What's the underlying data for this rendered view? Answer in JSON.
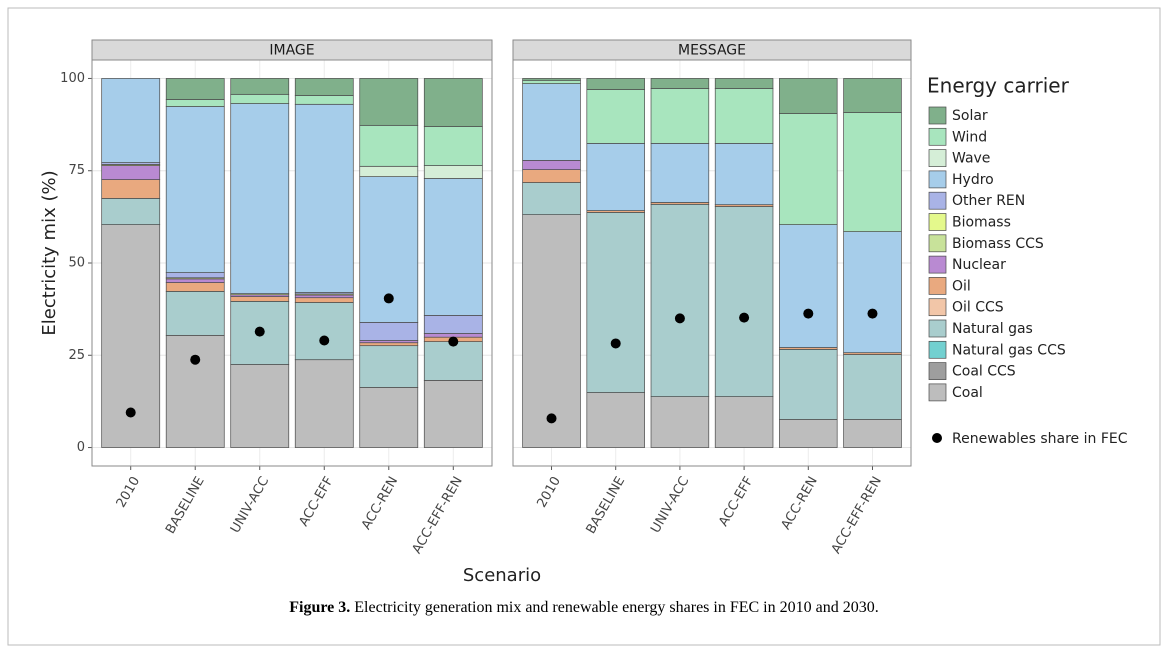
{
  "caption": {
    "label": "Figure 3.",
    "text": "Electricity generation mix and renewable energy shares in FEC in 2010 and 2030."
  },
  "chart_data": [
    {
      "type": "bar",
      "stacked": true,
      "title": "IMAGE",
      "y_label": "Electricity mix (%)",
      "x_label": "Scenario",
      "legend_title": "Energy carrier",
      "grid": true,
      "ylim": [
        -5,
        105
      ],
      "yticks": [
        0,
        25,
        50,
        75,
        100
      ],
      "categories": [
        "2010",
        "BASELINE",
        "UNIV-ACC",
        "ACC-EFF",
        "ACC-REN",
        "ACC-EFF-REN"
      ],
      "series": [
        {
          "name": "Coal",
          "color": "#bdbdbd",
          "values": [
            60.4,
            30.4,
            22.5,
            23.8,
            16.3,
            18.2
          ]
        },
        {
          "name": "Coal CCS",
          "color": "#9e9e9e",
          "values": [
            0,
            0,
            0,
            0,
            0,
            0
          ]
        },
        {
          "name": "Natural gas CCS",
          "color": "#72d0d0",
          "values": [
            0,
            0,
            0,
            0,
            0,
            0
          ]
        },
        {
          "name": "Natural gas",
          "color": "#a9cdcd",
          "values": [
            7.1,
            11.9,
            17.1,
            15.5,
            11.3,
            10.5
          ]
        },
        {
          "name": "Oil CCS",
          "color": "#f2c6a8",
          "values": [
            0,
            0,
            0,
            0,
            0,
            0
          ]
        },
        {
          "name": "Oil",
          "color": "#e9a97f",
          "values": [
            5.1,
            2.4,
            1.3,
            1.3,
            0.8,
            1.2
          ]
        },
        {
          "name": "Nuclear",
          "color": "#b98ad2",
          "values": [
            3.8,
            1.0,
            0.5,
            0.7,
            0.6,
            1.0
          ]
        },
        {
          "name": "Biomass CCS",
          "color": "#c8e29a",
          "values": [
            0,
            0,
            0,
            0,
            0,
            0
          ]
        },
        {
          "name": "Biomass",
          "color": "#e4f98c",
          "values": [
            0.3,
            0.3,
            0.3,
            0.3,
            0,
            0
          ]
        },
        {
          "name": "Other REN",
          "color": "#a9b3e6",
          "values": [
            0.5,
            1.4,
            0,
            0.4,
            4.9,
            4.9
          ]
        },
        {
          "name": "Hydro",
          "color": "#a6cdea",
          "values": [
            22.8,
            45.0,
            51.5,
            51.0,
            39.5,
            37.1
          ]
        },
        {
          "name": "Wave",
          "color": "#d5eed7",
          "values": [
            0,
            0,
            0,
            0,
            2.8,
            3.5
          ]
        },
        {
          "name": "Wind",
          "color": "#a8e5be",
          "values": [
            0,
            1.9,
            2.5,
            2.4,
            11.1,
            10.6
          ]
        },
        {
          "name": "Solar",
          "color": "#80b08b",
          "values": [
            0,
            5.7,
            4.3,
            4.6,
            12.7,
            13.0
          ]
        }
      ],
      "points": {
        "name": "Renewables share in FEC",
        "color": "#000000",
        "values": [
          9.5,
          23.8,
          31.4,
          29.0,
          40.4,
          28.7
        ]
      }
    },
    {
      "type": "bar",
      "stacked": true,
      "title": "MESSAGE",
      "grid": true,
      "ylim": [
        -5,
        105
      ],
      "yticks": [
        0,
        25,
        50,
        75,
        100
      ],
      "series": [
        {
          "color": "#bdbdbd",
          "values": [
            63.1,
            14.9,
            13.8,
            13.8,
            7.6,
            7.6
          ]
        },
        {
          "color": "#9e9e9e",
          "values": [
            0,
            0,
            0,
            0,
            0,
            0
          ]
        },
        {
          "color": "#72d0d0",
          "values": [
            0,
            0,
            0,
            0,
            0,
            0
          ]
        },
        {
          "color": "#a9cdcd",
          "values": [
            8.7,
            48.8,
            52.1,
            51.5,
            19.0,
            17.6
          ]
        },
        {
          "color": "#f2c6a8",
          "values": [
            0,
            0,
            0,
            0,
            0,
            0
          ]
        },
        {
          "color": "#e9a97f",
          "values": [
            3.5,
            0.5,
            0.5,
            0.5,
            0.5,
            0.5
          ]
        },
        {
          "color": "#b98ad2",
          "values": [
            2.5,
            0,
            0,
            0,
            0,
            0
          ]
        },
        {
          "color": "#c8e29a",
          "values": [
            0,
            0,
            0,
            0,
            0,
            0
          ]
        },
        {
          "color": "#e4f98c",
          "values": [
            0,
            0,
            0,
            0,
            0,
            0
          ]
        },
        {
          "color": "#a9b3e6",
          "values": [
            0,
            0,
            0,
            0,
            0,
            0
          ]
        },
        {
          "color": "#a6cdea",
          "values": [
            20.8,
            18.2,
            16.0,
            16.6,
            33.3,
            32.8
          ]
        },
        {
          "color": "#d5eed7",
          "values": [
            0,
            0,
            0,
            0,
            0,
            0
          ]
        },
        {
          "color": "#a8e5be",
          "values": [
            0.9,
            14.6,
            14.9,
            14.9,
            30.1,
            32.3
          ]
        },
        {
          "color": "#80b08b",
          "values": [
            0.5,
            3.0,
            2.7,
            2.7,
            9.5,
            9.2
          ]
        }
      ],
      "points": {
        "values": [
          7.9,
          28.2,
          35.0,
          35.2,
          36.3,
          36.3
        ]
      }
    }
  ]
}
